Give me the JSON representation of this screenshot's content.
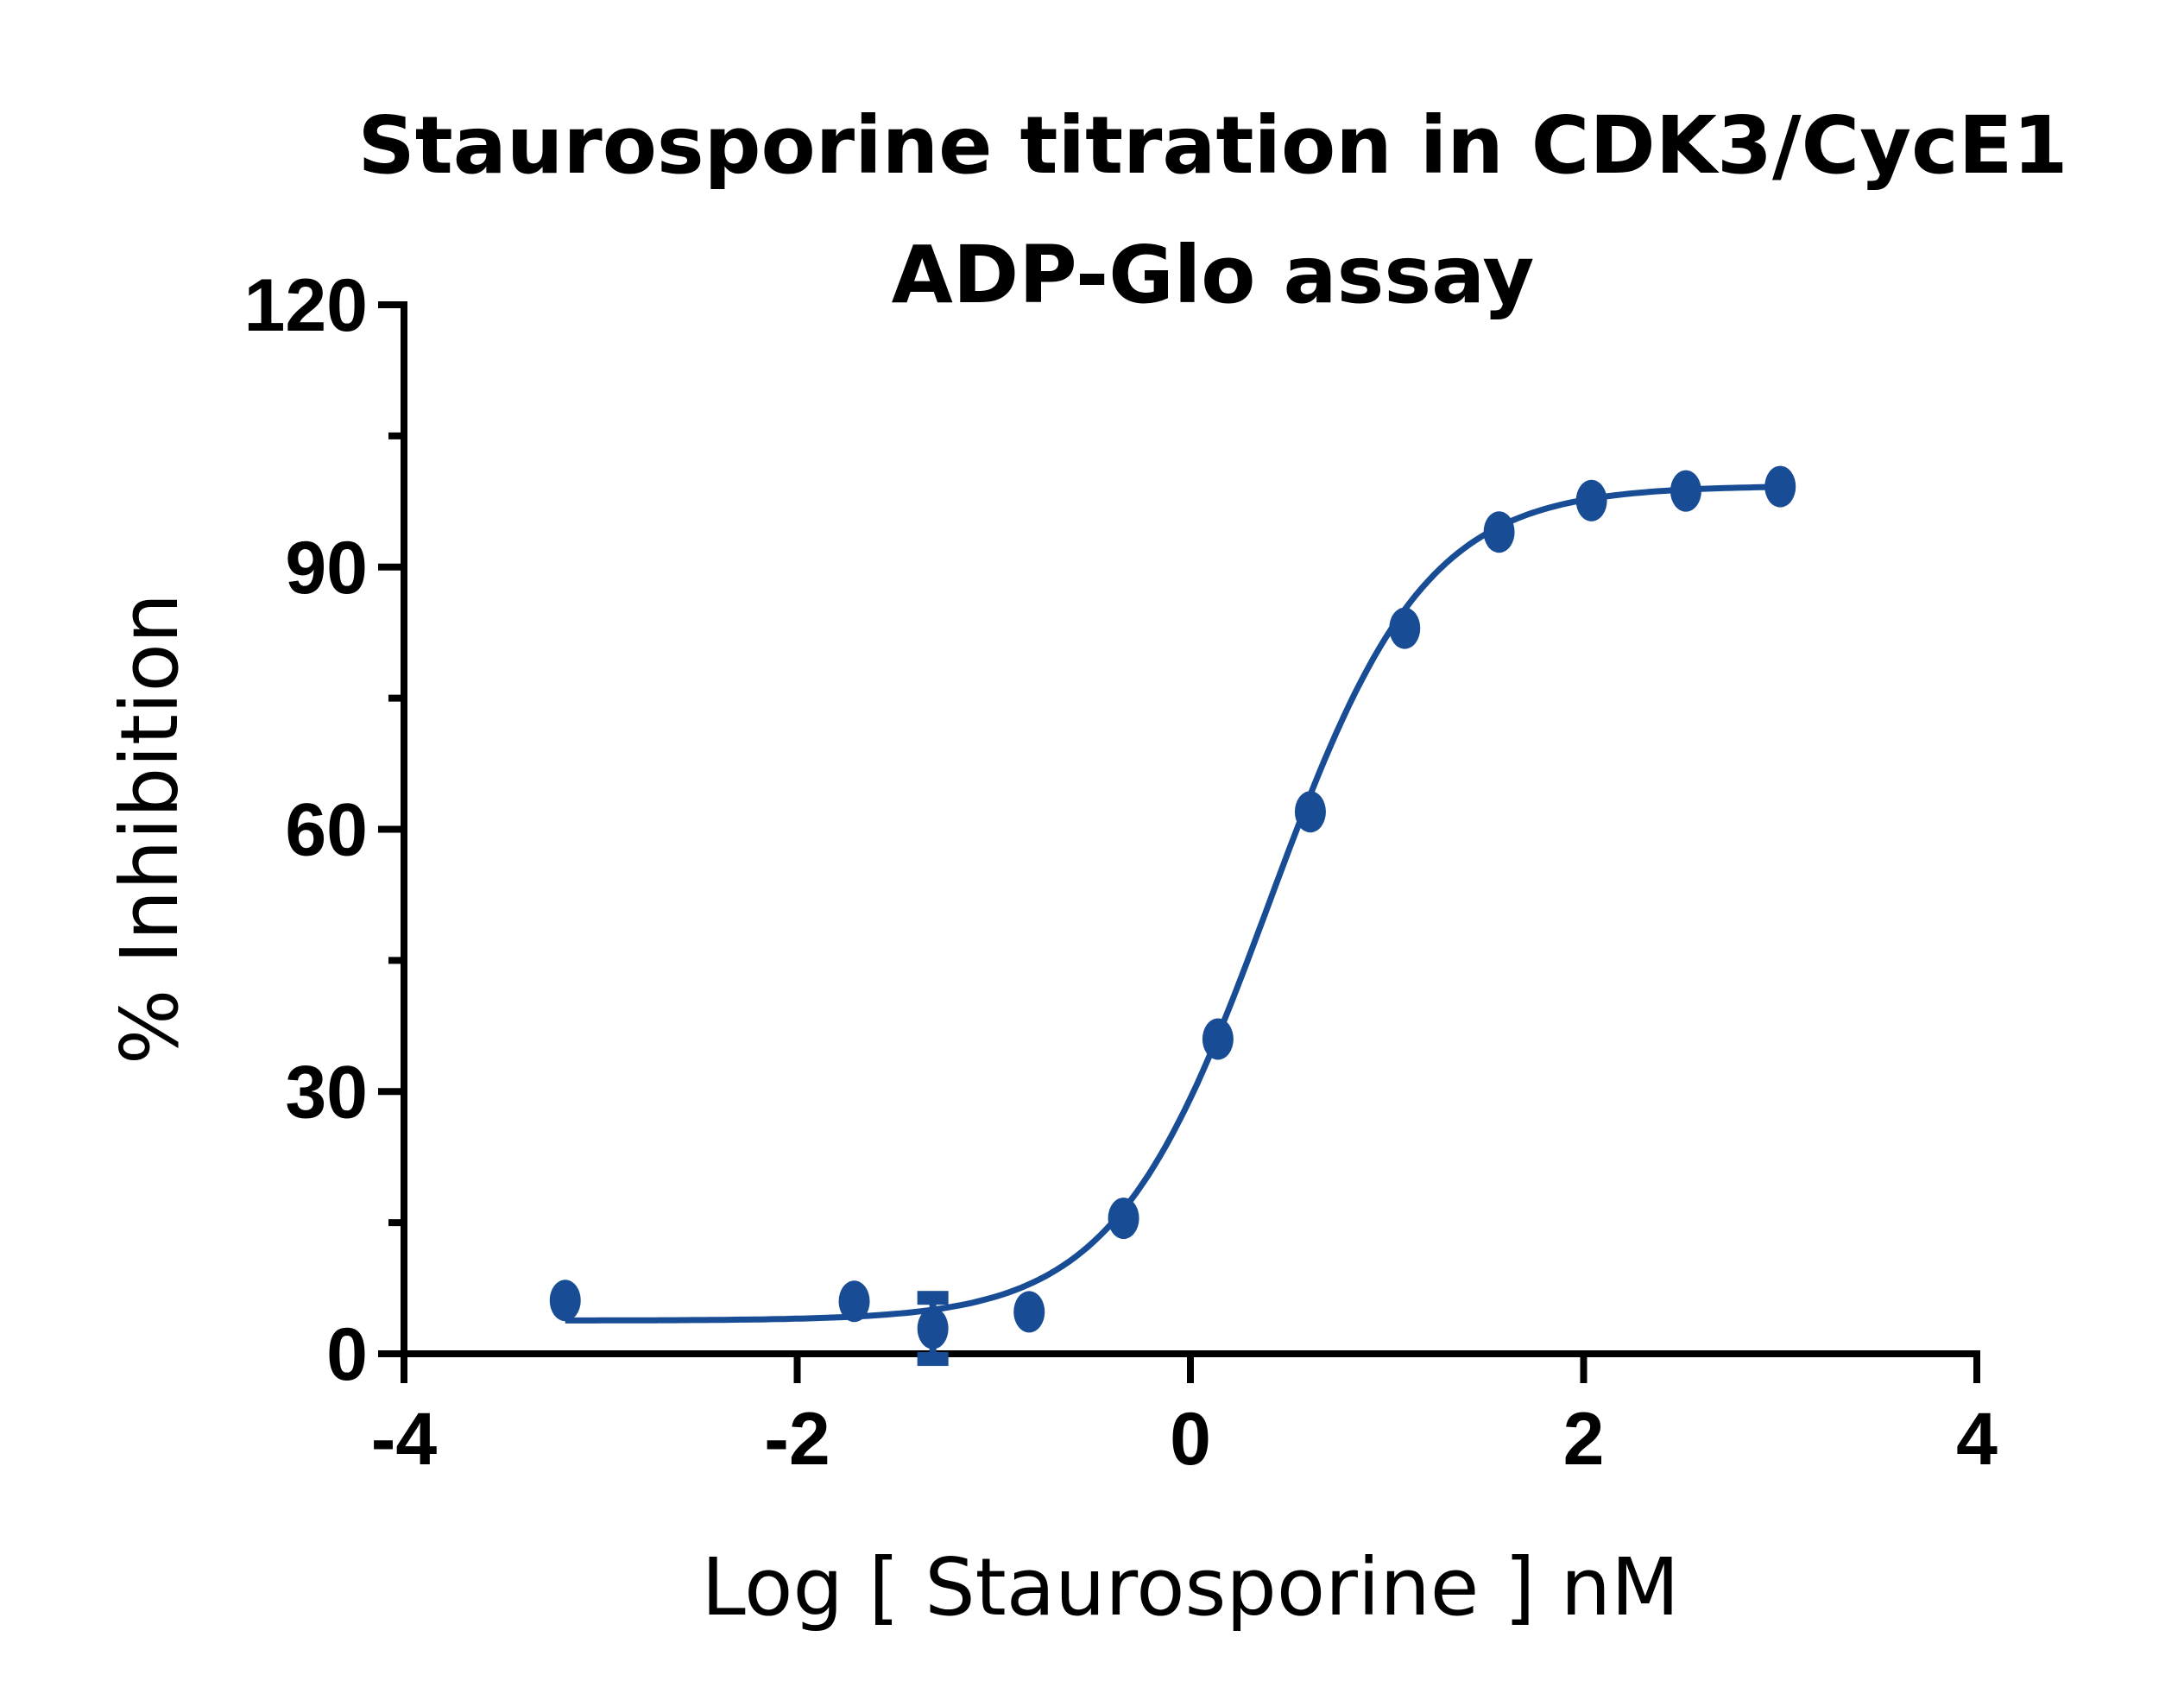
{
  "chart_data": {
    "type": "scatter",
    "title": [
      "Staurosporine titration in CDK3/CycE1",
      "ADP-Glo assay"
    ],
    "xlabel": "Log [ Staurosporine ] nM",
    "ylabel": "% Inhibition",
    "xlim": [
      -4,
      4
    ],
    "ylim": [
      0,
      120
    ],
    "xticks": [
      "-4",
      "-2",
      "0",
      "2",
      "4"
    ],
    "xtick_values": [
      -4,
      -2,
      0,
      2,
      4
    ],
    "yticks": [
      "0",
      "30",
      "60",
      "90",
      "120"
    ],
    "ytick_values": [
      0,
      30,
      60,
      90,
      120
    ],
    "y_minor_ticks": [
      15,
      45,
      75,
      105
    ],
    "grid": false,
    "legend": "none",
    "color": "#184d96",
    "points": [
      {
        "x": -3.18,
        "y": 6.1
      },
      {
        "x": -1.71,
        "y": 6.0
      },
      {
        "x": -1.31,
        "y": 2.9,
        "error": 3.5
      },
      {
        "x": -0.82,
        "y": 4.8
      },
      {
        "x": -0.34,
        "y": 15.5
      },
      {
        "x": 0.14,
        "y": 36.0
      },
      {
        "x": 0.61,
        "y": 62.0
      },
      {
        "x": 1.09,
        "y": 83.0
      },
      {
        "x": 1.57,
        "y": 94.0
      },
      {
        "x": 2.04,
        "y": 97.6
      },
      {
        "x": 2.52,
        "y": 98.7
      },
      {
        "x": 3.0,
        "y": 99.2
      }
    ],
    "fit": "sigmoidal dose-response curve"
  }
}
